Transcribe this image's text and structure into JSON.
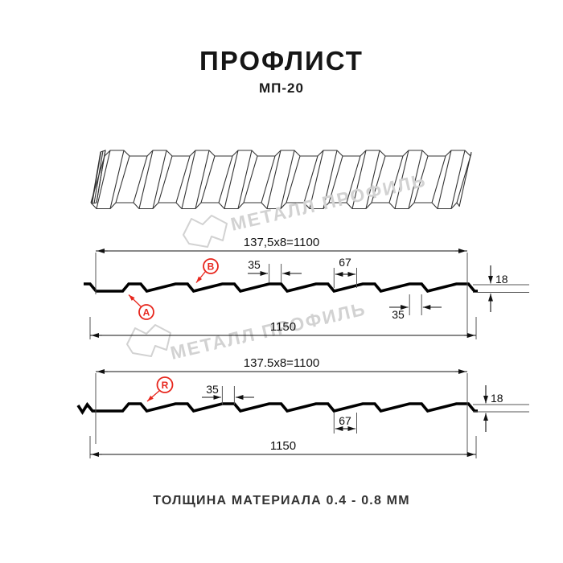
{
  "title": "ПРОФЛИСТ",
  "subtitle": "МП-20",
  "footer": "ТОЛЩИНА МАТЕРИАЛА 0.4 - 0.8 ММ",
  "watermark": {
    "text": "МЕТАЛЛ ПРОФИЛЬ"
  },
  "colors": {
    "accent_red": "#e7261d",
    "line_black": "#000000",
    "watermark_gray": "#d2d2d2"
  },
  "profile_top": {
    "dim_width_formula": "137,5x8=1100",
    "dim_total_width": "1150",
    "dim_rib_top": "35",
    "dim_valley": "67",
    "dim_height": "18",
    "dim_rib_bottom": "35",
    "label_a": "А",
    "label_b": "В"
  },
  "profile_bottom": {
    "dim_width_formula": "137.5x8=1100",
    "dim_total_width": "1150",
    "dim_rib_top": "35",
    "dim_valley": "67",
    "dim_height": "18",
    "label_r": "R"
  }
}
